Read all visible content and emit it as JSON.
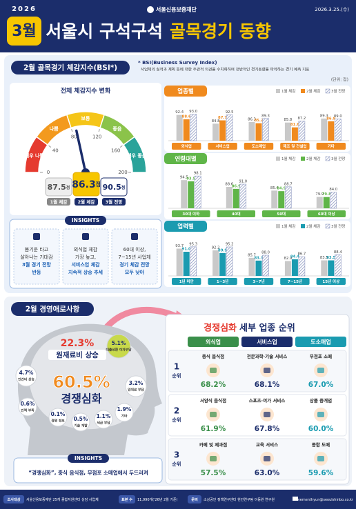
{
  "header": {
    "year": "2026",
    "month": "3월",
    "org": "서울신용보증재단",
    "title_a": "서울시 구석구석",
    "title_b": "골목경기 동향",
    "date": "2026.3.25.(수)"
  },
  "bsi": {
    "title": "2월 골목경기 체감지수(BSI*)",
    "note_title": "* BSI(Business Survey Index)",
    "note": "사업체의 실적과 계획 등에 대한 주관적 의견을 수치화하여 전반적인 경기동향을 파악하는 경기 예측 지표",
    "unit": "(단위: 점)",
    "gauge": {
      "title": "전체 체감지수 변화",
      "ticks": [
        0,
        40,
        80,
        120,
        160,
        200
      ],
      "zones": [
        "매우 나쁨",
        "나쁨",
        "보통",
        "좋음",
        "매우 좋음"
      ],
      "zone_colors": [
        "#e53a2f",
        "#f39a1e",
        "#f5c518",
        "#8bc34a",
        "#2aa39a"
      ],
      "values": [
        87.5,
        86.3,
        90.5
      ],
      "value_unit": "점",
      "labels": [
        "1월 체감",
        "2월 체감",
        "3월 전망"
      ]
    },
    "insights": {
      "title": "INSIGHTS",
      "items": [
        [
          "봄기운 타고",
          "살아나는 기대감",
          "3월 경기 전망",
          "반등"
        ],
        [
          "외식업 체감",
          "가장 높고,",
          "서비스업 체감",
          "지속적 상승 추세"
        ],
        [
          "60대 이상,",
          "7~15년 사업체",
          "경기 체감 전망",
          "모두 낮아"
        ]
      ]
    }
  },
  "chart_data": [
    {
      "type": "bar",
      "title": "업종별",
      "ylim": [
        70,
        100
      ],
      "categories": [
        "외식업",
        "서비스업",
        "도소매업",
        "제조 및 건설업",
        "기타"
      ],
      "series": [
        {
          "name": "1월 체감",
          "color": "#c9c9c9",
          "values": [
            92.4,
            84.8,
            86.3,
            85.8,
            89.3
          ],
          "value_labels": [
            "92.4",
            "84.8",
            "86.3",
            "85.8",
            "89.3"
          ]
        },
        {
          "name": "2월 체감",
          "color": "#f08a1e",
          "values": [
            88.6,
            87.7,
            85.2,
            81.6,
            86.9
          ],
          "value_labels": [
            "88.6",
            "87.7",
            "85.2",
            "81.6",
            "86.9"
          ]
        },
        {
          "name": "3월 전망",
          "color": "#8c97c0",
          "pattern": "hatch",
          "values": [
            93.0,
            92.5,
            89.3,
            87.2,
            89.0
          ],
          "value_labels": [
            "93.0",
            "92.5",
            "89.3",
            "87.2",
            "89.0"
          ]
        }
      ]
    },
    {
      "type": "bar",
      "title": "연령대별",
      "ylim": [
        70,
        100
      ],
      "categories": [
        "30대 이하",
        "40대",
        "50대",
        "60대 이상"
      ],
      "series": [
        {
          "name": "1월 체감",
          "color": "#c9c9c9",
          "values": [
            94.5,
            88.6,
            85.4,
            79.9
          ],
          "value_labels": [
            "94.5",
            "88.6",
            "85.4",
            "79.9"
          ]
        },
        {
          "name": "2월 체감",
          "color": "#5fb548",
          "values": [
            93.5,
            86.9,
            84.9,
            79.8
          ],
          "value_labels": [
            "93.5",
            "86.9",
            "84.9",
            "79.8"
          ]
        },
        {
          "name": "3월 전망",
          "color": "#8c97c0",
          "pattern": "hatch",
          "values": [
            98.1,
            91.0,
            88.7,
            84.0
          ],
          "value_labels": [
            "98.1",
            "91.0",
            "88.7",
            "84.0"
          ]
        }
      ]
    },
    {
      "type": "bar",
      "title": "업력별",
      "ylim": [
        70,
        100
      ],
      "categories": [
        "1년 미만",
        "1~3년",
        "3~7년",
        "7~15년",
        "15년 이상"
      ],
      "series": [
        {
          "name": "1월 체감",
          "color": "#c9c9c9",
          "values": [
            93.7,
            92.2,
            85.7,
            82.9,
            83.5
          ],
          "value_labels": [
            "93.7",
            "92.2",
            "85.7",
            "82.9",
            "83.5"
          ]
        },
        {
          "name": "2월 체감",
          "color": "#1a9bb0",
          "values": [
            91.0,
            89.9,
            83.3,
            84.4,
            83.5
          ],
          "value_labels": [
            "91.0",
            "89.9",
            "83.3",
            "84.4",
            "83.5"
          ]
        },
        {
          "name": "3월 전망",
          "color": "#8c97c0",
          "pattern": "hatch",
          "values": [
            95.3,
            95.2,
            88.0,
            86.7,
            88.4
          ],
          "value_labels": [
            "95.3",
            "95.2",
            "88.0",
            "86.7",
            "88.4"
          ]
        }
      ]
    }
  ],
  "difficulty": {
    "title": "2월 경영애로사항",
    "bubbles": [
      {
        "value": "60.5%",
        "label": "경쟁심화"
      },
      {
        "value": "22.3%",
        "label": "원재료비 상승"
      },
      {
        "value": "5.1%",
        "label": "대출상환 이자부담"
      },
      {
        "value": "4.7%",
        "label": "인건비 상승"
      },
      {
        "value": "3.2%",
        "label": "임대료 부담"
      },
      {
        "value": "1.9%",
        "label": "기타"
      },
      {
        "value": "1.1%",
        "label": "세금 부담"
      },
      {
        "value": "0.6%",
        "label": "인력 부족"
      },
      {
        "value": "0.5%",
        "label": "기술 개발"
      },
      {
        "value": "0.1%",
        "label": "경영 정보"
      }
    ],
    "insight_title": "INSIGHTS",
    "insight": "“경쟁심화”, 중식 음식점, 무점포 소매업에서 두드러져"
  },
  "ranking": {
    "title_a": "경쟁심화",
    "title_b": "세부 업종 순위",
    "columns": [
      "외식업",
      "서비스업",
      "도소매업"
    ],
    "ranks": [
      "1",
      "2",
      "3"
    ],
    "rank_suffix": "순위",
    "rows": [
      [
        {
          "name": "중식 음식점",
          "value": "68.2%"
        },
        {
          "name": "전문과학·기술 서비스",
          "value": "68.1%"
        },
        {
          "name": "무점포 소매",
          "value": "67.0%"
        }
      ],
      [
        {
          "name": "서양식 음식점",
          "value": "61.9%"
        },
        {
          "name": "스포츠·여가 서비스",
          "value": "67.8%"
        },
        {
          "name": "상품 중개업",
          "value": "60.0%"
        }
      ],
      [
        {
          "name": "카페 및 제과점",
          "value": "57.5%"
        },
        {
          "name": "교육 서비스",
          "value": "63.0%"
        },
        {
          "name": "종합 도매",
          "value": "59.6%"
        }
      ]
    ]
  },
  "footer": {
    "items": [
      {
        "label": "조사대상",
        "text": "서울신용보증재단 25개 종합지원센터 상담 사업체"
      },
      {
        "label": "표본 수",
        "text": "11,990개('26년 2월 기준)"
      },
      {
        "label": "문의",
        "text": "소상공인 정책연구센터 현안연구팀 이동원 연구원"
      }
    ],
    "email": "movementhyun@seoulshinbo.co.kr"
  }
}
